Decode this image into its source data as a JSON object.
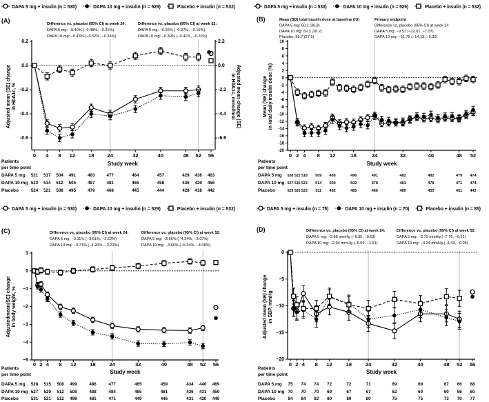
{
  "chart_data": [
    {
      "panel": "(A)",
      "type": "line",
      "annotations": [
        [
          "Difference vs. placebo (95% CI) at week 24:",
          "DAPA 5 mg: −0.40% (−0.48%, −0.31%)",
          "DAPA 10 mg: −0.43% (−0.52%, −0.34%)"
        ],
        [
          "Difference vs. placebo (95% CI) at week 52:",
          "DAPA 5 mg: −0.26% (−0.37%, −0.16%)",
          "DAPA 10 mg: −0.30% (−0.41%, −0.20%)"
        ]
      ],
      "ylabel": [
        "Adjusted mean (SE) change",
        "in HbA1c, %"
      ],
      "y2label": [
        "Adjusted mean change (SE)",
        "in HbA1c, mmol/mol"
      ],
      "xlabel": "Study week",
      "xlim": [
        0,
        56
      ],
      "ylim": [
        -0.7,
        0.2
      ],
      "xticks": [
        0,
        4,
        8,
        12,
        18,
        24,
        32,
        40,
        48,
        52,
        56
      ],
      "yticks": [
        0.2,
        0.0,
        -0.2,
        -0.4,
        -0.6
      ],
      "ytick_labels": [
        "0.2",
        "0.0",
        "-0.2",
        "-0.4",
        "-0.6"
      ],
      "y2tick_labels": [
        "2.2",
        "0.0",
        "-2.2",
        "-4.4",
        "-6.6"
      ],
      "reference_weeks": [
        24,
        52
      ],
      "series": [
        {
          "name": "DAPA 5 mg + insulin (n = 530)",
          "marker": "open-circle",
          "line": "solid",
          "weeks": [
            0,
            4,
            8,
            12,
            18,
            24,
            32,
            40,
            48,
            52
          ],
          "values": [
            0,
            -0.48,
            -0.52,
            -0.51,
            -0.35,
            -0.4,
            -0.28,
            -0.21,
            -0.21,
            -0.2
          ],
          "se": 0.03,
          "week56": 0.1
        },
        {
          "name": "DAPA 10 mg + insulin (n = 529)",
          "marker": "filled-circle",
          "line": "dotted",
          "weeks": [
            0,
            4,
            8,
            12,
            18,
            24,
            32,
            40,
            48,
            52
          ],
          "values": [
            0,
            -0.54,
            -0.6,
            -0.57,
            -0.4,
            -0.42,
            -0.36,
            -0.25,
            -0.26,
            -0.23
          ],
          "se": 0.03,
          "week56": 0.11
        },
        {
          "name": "Placebo + insulin (n = 532)",
          "marker": "open-square",
          "line": "dashed",
          "weeks": [
            0,
            4,
            8,
            12,
            18,
            24,
            32,
            40,
            48,
            52
          ],
          "values": [
            0,
            -0.09,
            -0.03,
            -0.06,
            0.02,
            0.0,
            0.08,
            0.12,
            0.07,
            0.07
          ],
          "se": 0.03,
          "week56": 0.04
        }
      ],
      "patients": {
        "label": [
          "Patients",
          "per time point"
        ],
        "weeks": [
          0,
          4,
          8,
          12,
          18,
          24,
          32,
          40,
          48,
          52,
          56
        ],
        "rows": [
          {
            "name": "DAPA 5 mg",
            "values": [
              "521",
              "517",
              "504",
              "491",
              "483",
              "477",
              "464",
              "457",
              "429",
              "436",
              "463"
            ]
          },
          {
            "name": "DAPA 10 mg",
            "values": [
              "523",
              "514",
              "512",
              "505",
              "487",
              "481",
              "466",
              "458",
              "436",
              "429",
              "456"
            ]
          },
          {
            "name": "Placebo",
            "values": [
              "524",
              "521",
              "508",
              "495",
              "479",
              "468",
              "445",
              "444",
              "428",
              "418",
              "442"
            ]
          }
        ]
      }
    },
    {
      "panel": "(B)",
      "type": "line",
      "annotations": [
        [
          "Mean (SD) total insulin dose at baseline (IU)",
          "DAPA 5 mg: 60.2 (36.8)",
          "DAPA 10 mg: 59.3 (28.2)",
          "Placebo: 59.7 (27.5)"
        ],
        [
          "Primary endpoint",
          "Difference vs. placebo (95% CI) at week 24",
          "DAPA 5 mg: −9.57 (−12.01, −7.07)",
          "DAPA 10 mg: −11.75 (−14.13, −9.30)"
        ]
      ],
      "ylabel": [
        "Mean (SE) change",
        "in total daily insulin dose (%)"
      ],
      "xlabel": "Study week",
      "xlim": [
        0,
        52
      ],
      "ylim": [
        -20,
        10
      ],
      "xticks": [
        0,
        2,
        4,
        8,
        12,
        18,
        24,
        32,
        40,
        48,
        52
      ],
      "yticks": [
        10,
        8,
        6,
        4,
        2,
        0,
        -2,
        -4,
        -6,
        -8,
        -10,
        -12,
        -14,
        -16,
        -18,
        -20
      ],
      "ytick_labels": [
        "10",
        "8",
        "6",
        "4",
        "2",
        "0",
        "-2",
        "-4",
        "-6",
        "-8",
        "-10",
        "-12",
        "-14",
        "-16",
        "-18",
        "-20"
      ],
      "reference_weeks": [
        24
      ],
      "series": [
        {
          "name": "DAPA 5 mg + insulin (n = 530)",
          "marker": "open-circle",
          "line": "solid",
          "weeks": [
            0,
            2,
            4,
            6,
            8,
            10,
            12,
            14,
            16,
            18,
            20,
            22,
            24,
            26,
            28,
            30,
            32,
            34,
            36,
            38,
            40,
            42,
            44,
            46,
            48,
            50,
            52
          ],
          "values": [
            0,
            -12.3,
            -13.9,
            -13.5,
            -14,
            -13.2,
            -10.9,
            -12.5,
            -12.2,
            -12.3,
            -11.6,
            -11,
            -10.4,
            -12.6,
            -12.4,
            -12.4,
            -12.4,
            -11.4,
            -10.9,
            -11.3,
            -11.2,
            -11.5,
            -11.1,
            -11.2,
            -11.3,
            -10.3,
            -9.5
          ],
          "se": 0.9
        },
        {
          "name": "DAPA 10 mg + insulin (n = 529)",
          "marker": "filled-circle",
          "line": "dotted",
          "weeks": [
            0,
            2,
            4,
            6,
            8,
            10,
            12,
            14,
            16,
            18,
            20,
            22,
            24,
            26,
            28,
            30,
            32,
            34,
            36,
            38,
            40,
            42,
            44,
            46,
            48,
            50,
            52
          ],
          "values": [
            0,
            -12.3,
            -15.3,
            -15.2,
            -15.2,
            -14.6,
            -11.6,
            -13.3,
            -13.9,
            -13.5,
            -12.8,
            -13.1,
            -10.5,
            -11.6,
            -11.9,
            -12.3,
            -12.1,
            -11.6,
            -10.6,
            -10.8,
            -10.2,
            -11.1,
            -10.7,
            -10.6,
            -11.1,
            -10,
            -8.9
          ],
          "se": 1.0
        },
        {
          "name": "Placebo + insulin (n = 532)",
          "marker": "open-square",
          "line": "dashed",
          "weeks": [
            0,
            2,
            4,
            6,
            8,
            10,
            12,
            14,
            16,
            18,
            20,
            22,
            24,
            26,
            28,
            30,
            32,
            34,
            36,
            38,
            40,
            42,
            44,
            46,
            48,
            50,
            52
          ],
          "values": [
            0,
            -4,
            -5,
            -4.6,
            -4.3,
            -4.2,
            -1.2,
            -2.8,
            -2.9,
            -3.2,
            -2.7,
            -1.8,
            -0.8,
            -2.8,
            -3.3,
            -3.1,
            -3.2,
            -2.5,
            -2.3,
            -2.3,
            -2.5,
            -2,
            -0.5,
            -1,
            -1.1,
            -0.2,
            -0.5
          ],
          "se": 0.9
        }
      ],
      "patients": {
        "label": [
          "Patients",
          "per time point"
        ],
        "weeks": [
          0,
          2,
          4,
          8,
          12,
          18,
          24,
          32,
          40,
          48,
          52
        ],
        "rows": [
          {
            "name": "DAPA 5 mg",
            "values": [
              "528",
              "522",
              "518",
              "509",
              "495",
              "496",
              "491",
              "482",
              "482",
              "479",
              "474"
            ]
          },
          {
            "name": "DAPA 10 mg",
            "values": [
              "527",
              "516",
              "523",
              "514",
              "500",
              "502",
              "478",
              "481",
              "478",
              "471",
              "474"
            ]
          },
          {
            "name": "Placebo",
            "values": [
              "529",
              "520",
              "523",
              "511",
              "492",
              "485",
              "466",
              "460",
              "453",
              "451",
              "443"
            ]
          }
        ]
      }
    },
    {
      "panel": "(C)",
      "type": "line",
      "annotations": [
        [
          "Difference vs. placebo (95% CI) at week 24:",
          "DAPA 5 mg: −3.11% (−3.61%, −2.62%)",
          "DAPA 10 mg: −3.71% (−4.20%, −3.22%)"
        ],
        [
          "Difference vs. placebo (95% CI) at week 52:",
          "DAPA 5 mg: −3.66% (−4.24%, −3.07%)",
          "DAPA 10 mg: −4.66% (−5.24%, −4.08%)"
        ]
      ],
      "ylabel": [
        "Adjustedmean(SE) change",
        "in body weight, %"
      ],
      "xlabel": "Study week",
      "xlim": [
        0,
        56
      ],
      "ylim": [
        -5,
        1
      ],
      "xticks": [
        0,
        2,
        4,
        8,
        12,
        18,
        24,
        32,
        40,
        48,
        52,
        56
      ],
      "yticks": [
        1,
        0,
        -1,
        -2,
        -3,
        -4,
        -5
      ],
      "ytick_labels": [
        "1",
        "0",
        "−1",
        "−2",
        "−3",
        "−4",
        "−5"
      ],
      "reference_weeks": [
        24,
        52
      ],
      "series": [
        {
          "name": "DAPA 5 mg + insulin (n = 530)",
          "marker": "open-circle",
          "line": "solid",
          "weeks": [
            0,
            1,
            2,
            4,
            8,
            12,
            18,
            24,
            32,
            40,
            48,
            52
          ],
          "values": [
            0,
            -0.8,
            -0.75,
            -1.33,
            -2.02,
            -2.24,
            -2.75,
            -3.08,
            -3.28,
            -3.33,
            -3.35,
            -3.2
          ],
          "se": 0.15,
          "week56": -2.05
        },
        {
          "name": "DAPA 10 mg + insulin (n = 529)",
          "marker": "filled-circle",
          "line": "dotted",
          "weeks": [
            0,
            1,
            2,
            4,
            8,
            12,
            18,
            24,
            32,
            40,
            48,
            52
          ],
          "values": [
            0,
            -0.87,
            -1.05,
            -1.58,
            -2.45,
            -2.93,
            -3.45,
            -3.68,
            -4.08,
            -4.1,
            -4.02,
            -4.22
          ],
          "se": 0.15,
          "week56": -2.65
        },
        {
          "name": "Placebo + insulin (n = 532)",
          "marker": "open-square",
          "line": "dashed",
          "weeks": [
            0,
            1,
            2,
            4,
            8,
            12,
            18,
            24,
            32,
            40,
            48,
            52
          ],
          "values": [
            0,
            -0.05,
            0.03,
            -0.05,
            -0.1,
            0,
            0.08,
            0.17,
            0.27,
            0.43,
            0.53,
            0.45
          ],
          "se": 0.15,
          "week56": 0.47
        }
      ],
      "patients": {
        "label": [
          "Patients",
          "per time point"
        ],
        "weeks": [
          0,
          4,
          8,
          12,
          18,
          24,
          32,
          40,
          48,
          52,
          56
        ],
        "rows": [
          {
            "name": "DAPA 5 mg",
            "values": [
              "528",
              "515",
              "508",
              "499",
              "486",
              "477",
              "465",
              "459",
              "434",
              "440",
              "469"
            ]
          },
          {
            "name": "DAPA 10 mg",
            "values": [
              "527",
              "520",
              "512",
              "508",
              "488",
              "484",
              "465",
              "461",
              "436",
              "431",
              "459"
            ]
          },
          {
            "name": "Placebo",
            "values": [
              "531",
              "521",
              "512",
              "498",
              "481",
              "471",
              "449",
              "446",
              "431",
              "420",
              "446"
            ]
          }
        ]
      }
    },
    {
      "panel": "(D)",
      "type": "line",
      "annotations": [
        [
          "Difference vs. placebo (95% CI) at week 24:",
          "DAPA 5 mg: −2.86 mmHg (−6.35, −0.63)",
          "DAPA 10 mg: −2.04 mmHg (−5.59, −1.51)"
        ],
        [
          "Difference vs. placebo (95% CI) at week 52:",
          "DAPA 5 mg: −3.72 mmHg (−7.76, −0.31)",
          "DAPA 10 mg: −4.24 mmHg (−8.43, −0.05)"
        ]
      ],
      "ylabel": [
        "Adjusted mean (SE) change",
        "in SBP, mmHg"
      ],
      "xlabel": "Study week",
      "xlim": [
        0,
        56
      ],
      "ylim": [
        -20,
        0
      ],
      "xticks": [
        0,
        2,
        4,
        8,
        12,
        18,
        24,
        32,
        40,
        48,
        52,
        56
      ],
      "yticks": [
        0,
        -5,
        -10,
        -15,
        -20
      ],
      "ytick_labels": [
        "0",
        "−5",
        "−10",
        "−15",
        "−20"
      ],
      "reference_weeks": [
        24,
        52
      ],
      "series": [
        {
          "name": "DAPA 5 mg + insulin (n = 75)",
          "marker": "open-circle",
          "line": "solid",
          "weeks": [
            0,
            1,
            2,
            4,
            8,
            12,
            18,
            24,
            32,
            40,
            48,
            52
          ],
          "values": [
            0,
            -10.5,
            -11,
            -7.7,
            -11.5,
            -10.2,
            -11.2,
            -13.3,
            -14.7,
            -11.5,
            -11.5,
            -12.5
          ],
          "se": 1.5,
          "week56": -7.4
        },
        {
          "name": "DAPA 10 mg + insulin (n = 70)",
          "marker": "filled-circle",
          "line": "dotted",
          "weeks": [
            0,
            1,
            2,
            4,
            8,
            12,
            18,
            24,
            32,
            40,
            48,
            52
          ],
          "values": [
            0,
            -10.5,
            -11.2,
            -10.8,
            -12.5,
            -8.5,
            -9.5,
            -12.5,
            -11.8,
            -10.7,
            -12.2,
            -12.9
          ],
          "se": 1.5,
          "week56": -8.3
        },
        {
          "name": "Placebo + insulin (n = 85)",
          "marker": "open-square",
          "line": "dashed",
          "weeks": [
            0,
            1,
            2,
            4,
            8,
            12,
            18,
            24,
            32,
            40,
            48,
            52
          ],
          "values": [
            0,
            -8.2,
            -9.8,
            -10.5,
            -10.5,
            -8.2,
            -9.8,
            -10.5,
            -8.8,
            -9.6,
            -8.3,
            -8.6
          ],
          "se": 1.5
        }
      ],
      "patients": {
        "label": [
          "Patients",
          "per time point"
        ],
        "weeks": [
          0,
          4,
          8,
          12,
          18,
          24,
          32,
          40,
          48,
          52,
          56
        ],
        "rows": [
          {
            "name": "DAPA 5 mg",
            "values": [
              "75",
              "74",
              "74",
              "72",
              "72",
              "71",
              "69",
              "69",
              "67",
              "66",
              "68"
            ]
          },
          {
            "name": "DAPA 10 mg",
            "values": [
              "70",
              "70",
              "70",
              "69",
              "67",
              "67",
              "62",
              "60",
              "60",
              "56",
              "60"
            ]
          },
          {
            "name": "Placebo",
            "values": [
              "84",
              "84",
              "83",
              "80",
              "80",
              "80",
              "75",
              "75",
              "73",
              "70",
              "77"
            ]
          }
        ]
      }
    }
  ]
}
